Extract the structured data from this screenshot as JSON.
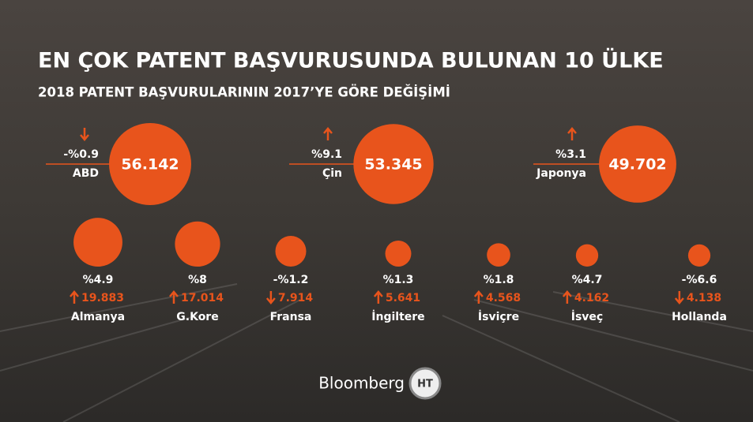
{
  "title": "EN ÇOK PATENT BAŞVURUSUNDA BULUNAN 10 ÜLKE",
  "subtitle": "2018 PATENT BAŞVURULARININ 2017’YE GÖRE DEĞİŞİMİ",
  "countries": [
    {
      "name": "ABD",
      "value": 56142,
      "value_label": "56.142",
      "change": -0.9,
      "change_label": "-%0.9"
    },
    {
      "name": "Çin",
      "value": 53345,
      "value_label": "53.345",
      "change": 9.1,
      "change_label": "%9.1"
    },
    {
      "name": "Japonya",
      "value": 49702,
      "value_label": "49.702",
      "change": 3.1,
      "change_label": "%3.1"
    },
    {
      "name": "Almanya",
      "value": 19883,
      "value_label": "19.883",
      "change": 4.9,
      "change_label": "%4.9"
    },
    {
      "name": "G.Kore",
      "value": 17014,
      "value_label": "17.014",
      "change": 8,
      "change_label": "%8"
    },
    {
      "name": "Fransa",
      "value": 7914,
      "value_label": "7.914",
      "change": -1.2,
      "change_label": "-%1.2"
    },
    {
      "name": "İngiltere",
      "value": 5641,
      "value_label": "5.641",
      "change": 1.3,
      "change_label": "%1.3"
    },
    {
      "name": "İsviçre",
      "value": 4568,
      "value_label": "4.568",
      "change": 1.8,
      "change_label": "%1.8"
    },
    {
      "name": "İsveç",
      "value": 4162,
      "value_label": "4.162",
      "change": 4.7,
      "change_label": "%4.7"
    },
    {
      "name": "Hollanda",
      "value": 4138,
      "value_label": "4.138",
      "change": -6.6,
      "change_label": "-%6.6"
    }
  ],
  "footer": {
    "brand": "Bloomberg",
    "logo": "HT"
  }
}
